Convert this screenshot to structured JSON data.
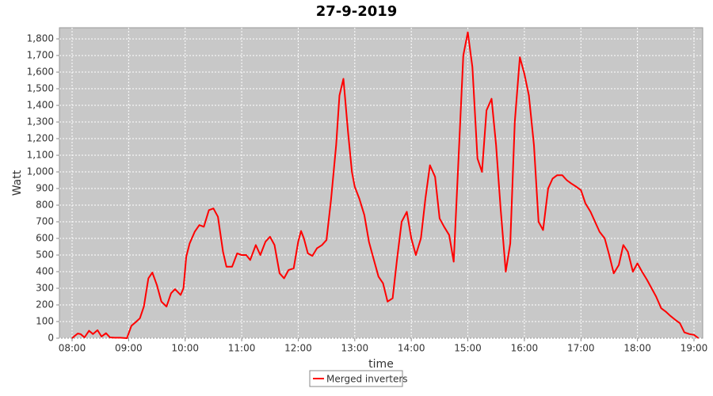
{
  "chart_data": {
    "type": "line",
    "title": "27-9-2019",
    "xlabel": "time",
    "ylabel": "Watt",
    "x": [
      8.0,
      8.05,
      8.1,
      8.15,
      8.22,
      8.3,
      8.37,
      8.45,
      8.52,
      8.6,
      8.67,
      8.75,
      8.85,
      8.97,
      9.05,
      9.12,
      9.2,
      9.27,
      9.35,
      9.42,
      9.5,
      9.58,
      9.67,
      9.75,
      9.82,
      9.92,
      9.97,
      10.02,
      10.08,
      10.17,
      10.25,
      10.33,
      10.42,
      10.5,
      10.58,
      10.67,
      10.73,
      10.83,
      10.92,
      11.0,
      11.08,
      11.15,
      11.25,
      11.33,
      11.42,
      11.5,
      11.58,
      11.67,
      11.75,
      11.83,
      11.92,
      12.0,
      12.05,
      12.1,
      12.17,
      12.25,
      12.33,
      12.42,
      12.5,
      12.58,
      12.67,
      12.73,
      12.8,
      12.88,
      12.95,
      13.0,
      13.08,
      13.17,
      13.25,
      13.33,
      13.42,
      13.5,
      13.58,
      13.67,
      13.75,
      13.83,
      13.92,
      14.0,
      14.08,
      14.17,
      14.25,
      14.33,
      14.42,
      14.5,
      14.58,
      14.67,
      14.75,
      14.83,
      14.92,
      15.0,
      15.08,
      15.17,
      15.25,
      15.33,
      15.42,
      15.5,
      15.58,
      15.67,
      15.75,
      15.83,
      15.92,
      16.0,
      16.08,
      16.17,
      16.25,
      16.33,
      16.42,
      16.5,
      16.58,
      16.67,
      16.75,
      16.83,
      16.92,
      17.0,
      17.08,
      17.17,
      17.25,
      17.33,
      17.42,
      17.5,
      17.58,
      17.67,
      17.75,
      17.83,
      17.92,
      18.0,
      18.08,
      18.17,
      18.25,
      18.33,
      18.42,
      18.5,
      18.58,
      18.67,
      18.75,
      18.83,
      18.92,
      19.0,
      19.08
    ],
    "series": [
      {
        "name": "Merged inverters",
        "color": "#ff0000",
        "values": [
          0,
          15,
          28,
          25,
          5,
          45,
          25,
          48,
          10,
          30,
          5,
          3,
          3,
          0,
          75,
          95,
          120,
          190,
          360,
          395,
          320,
          220,
          190,
          270,
          295,
          260,
          300,
          490,
          570,
          640,
          680,
          670,
          770,
          780,
          730,
          520,
          430,
          430,
          510,
          500,
          500,
          470,
          560,
          500,
          580,
          610,
          560,
          390,
          360,
          410,
          420,
          580,
          645,
          600,
          510,
          495,
          540,
          560,
          590,
          830,
          1160,
          1460,
          1560,
          1240,
          1000,
          910,
          840,
          740,
          580,
          480,
          370,
          330,
          220,
          240,
          480,
          700,
          760,
          600,
          500,
          600,
          840,
          1040,
          970,
          720,
          670,
          620,
          460,
          1040,
          1700,
          1840,
          1630,
          1080,
          1000,
          1370,
          1440,
          1160,
          780,
          400,
          570,
          1300,
          1690,
          1590,
          1460,
          1160,
          700,
          650,
          900,
          960,
          980,
          980,
          950,
          930,
          910,
          890,
          810,
          760,
          700,
          640,
          600,
          500,
          390,
          440,
          560,
          520,
          400,
          450,
          400,
          350,
          300,
          250,
          180,
          160,
          135,
          110,
          90,
          35,
          25,
          20,
          0
        ]
      }
    ],
    "xlim": [
      7.776,
      19.154
    ],
    "ylim": [
      0,
      1867
    ],
    "xticks": [
      {
        "value": 8,
        "label": "08:00"
      },
      {
        "value": 9,
        "label": "09:00"
      },
      {
        "value": 10,
        "label": "10:00"
      },
      {
        "value": 11,
        "label": "11:00"
      },
      {
        "value": 12,
        "label": "12:00"
      },
      {
        "value": 13,
        "label": "13:00"
      },
      {
        "value": 14,
        "label": "14:00"
      },
      {
        "value": 15,
        "label": "15:00"
      },
      {
        "value": 16,
        "label": "16:00"
      },
      {
        "value": 17,
        "label": "17:00"
      },
      {
        "value": 18,
        "label": "18:00"
      },
      {
        "value": 19,
        "label": "19:00"
      }
    ],
    "yticks": [
      0,
      100,
      200,
      300,
      400,
      500,
      600,
      700,
      800,
      900,
      {
        "value": 1000,
        "label": "1,000"
      },
      {
        "value": 1100,
        "label": "1,100"
      },
      {
        "value": 1200,
        "label": "1,200"
      },
      {
        "value": 1300,
        "label": "1,300"
      },
      {
        "value": 1400,
        "label": "1,400"
      },
      {
        "value": 1500,
        "label": "1,500"
      },
      {
        "value": 1600,
        "label": "1,600"
      },
      {
        "value": 1700,
        "label": "1,700"
      },
      {
        "value": 1800,
        "label": "1,800"
      }
    ],
    "grid": true,
    "legend": "bottom"
  }
}
